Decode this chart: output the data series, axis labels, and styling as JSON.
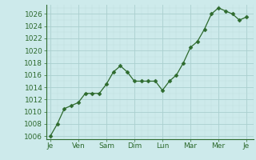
{
  "x_values": [
    0,
    0.5,
    1,
    1.5,
    2,
    2.5,
    3,
    3.5,
    4,
    4.5,
    5,
    5.5,
    6,
    6.5,
    7,
    7.5,
    8,
    8.5,
    9,
    9.5,
    10,
    10.5,
    11,
    11.5,
    12,
    12.5,
    13,
    13.5,
    14
  ],
  "y_values": [
    1006,
    1008,
    1010.5,
    1011,
    1011.5,
    1013,
    1013,
    1013,
    1014.5,
    1016.5,
    1017.5,
    1016.5,
    1015,
    1015,
    1015,
    1015,
    1013.5,
    1015,
    1016,
    1018,
    1020.5,
    1021.5,
    1023.5,
    1026,
    1027,
    1026.5,
    1026,
    1025,
    1025.5
  ],
  "x_tick_positions": [
    0,
    2,
    4,
    6,
    8,
    10,
    12,
    14
  ],
  "x_tick_labels": [
    "Je",
    "Ven",
    "Sam",
    "Dim",
    "Lun",
    "Mar",
    "Mer",
    "Je"
  ],
  "y_tick_values": [
    1006,
    1008,
    1010,
    1012,
    1014,
    1016,
    1018,
    1020,
    1022,
    1024,
    1026
  ],
  "ylim_min": 1005.5,
  "ylim_max": 1027.5,
  "xlim_min": -0.3,
  "xlim_max": 14.5,
  "line_color": "#2d6a2d",
  "marker_color": "#2d6a2d",
  "bg_color": "#cdeaeb",
  "grid_major_color": "#aacfcf",
  "grid_minor_color": "#c0dede",
  "axis_color": "#2d6a2d",
  "tick_color": "#2d6a2d",
  "font_size": 6.5,
  "marker_size": 2.5,
  "line_width": 0.9
}
